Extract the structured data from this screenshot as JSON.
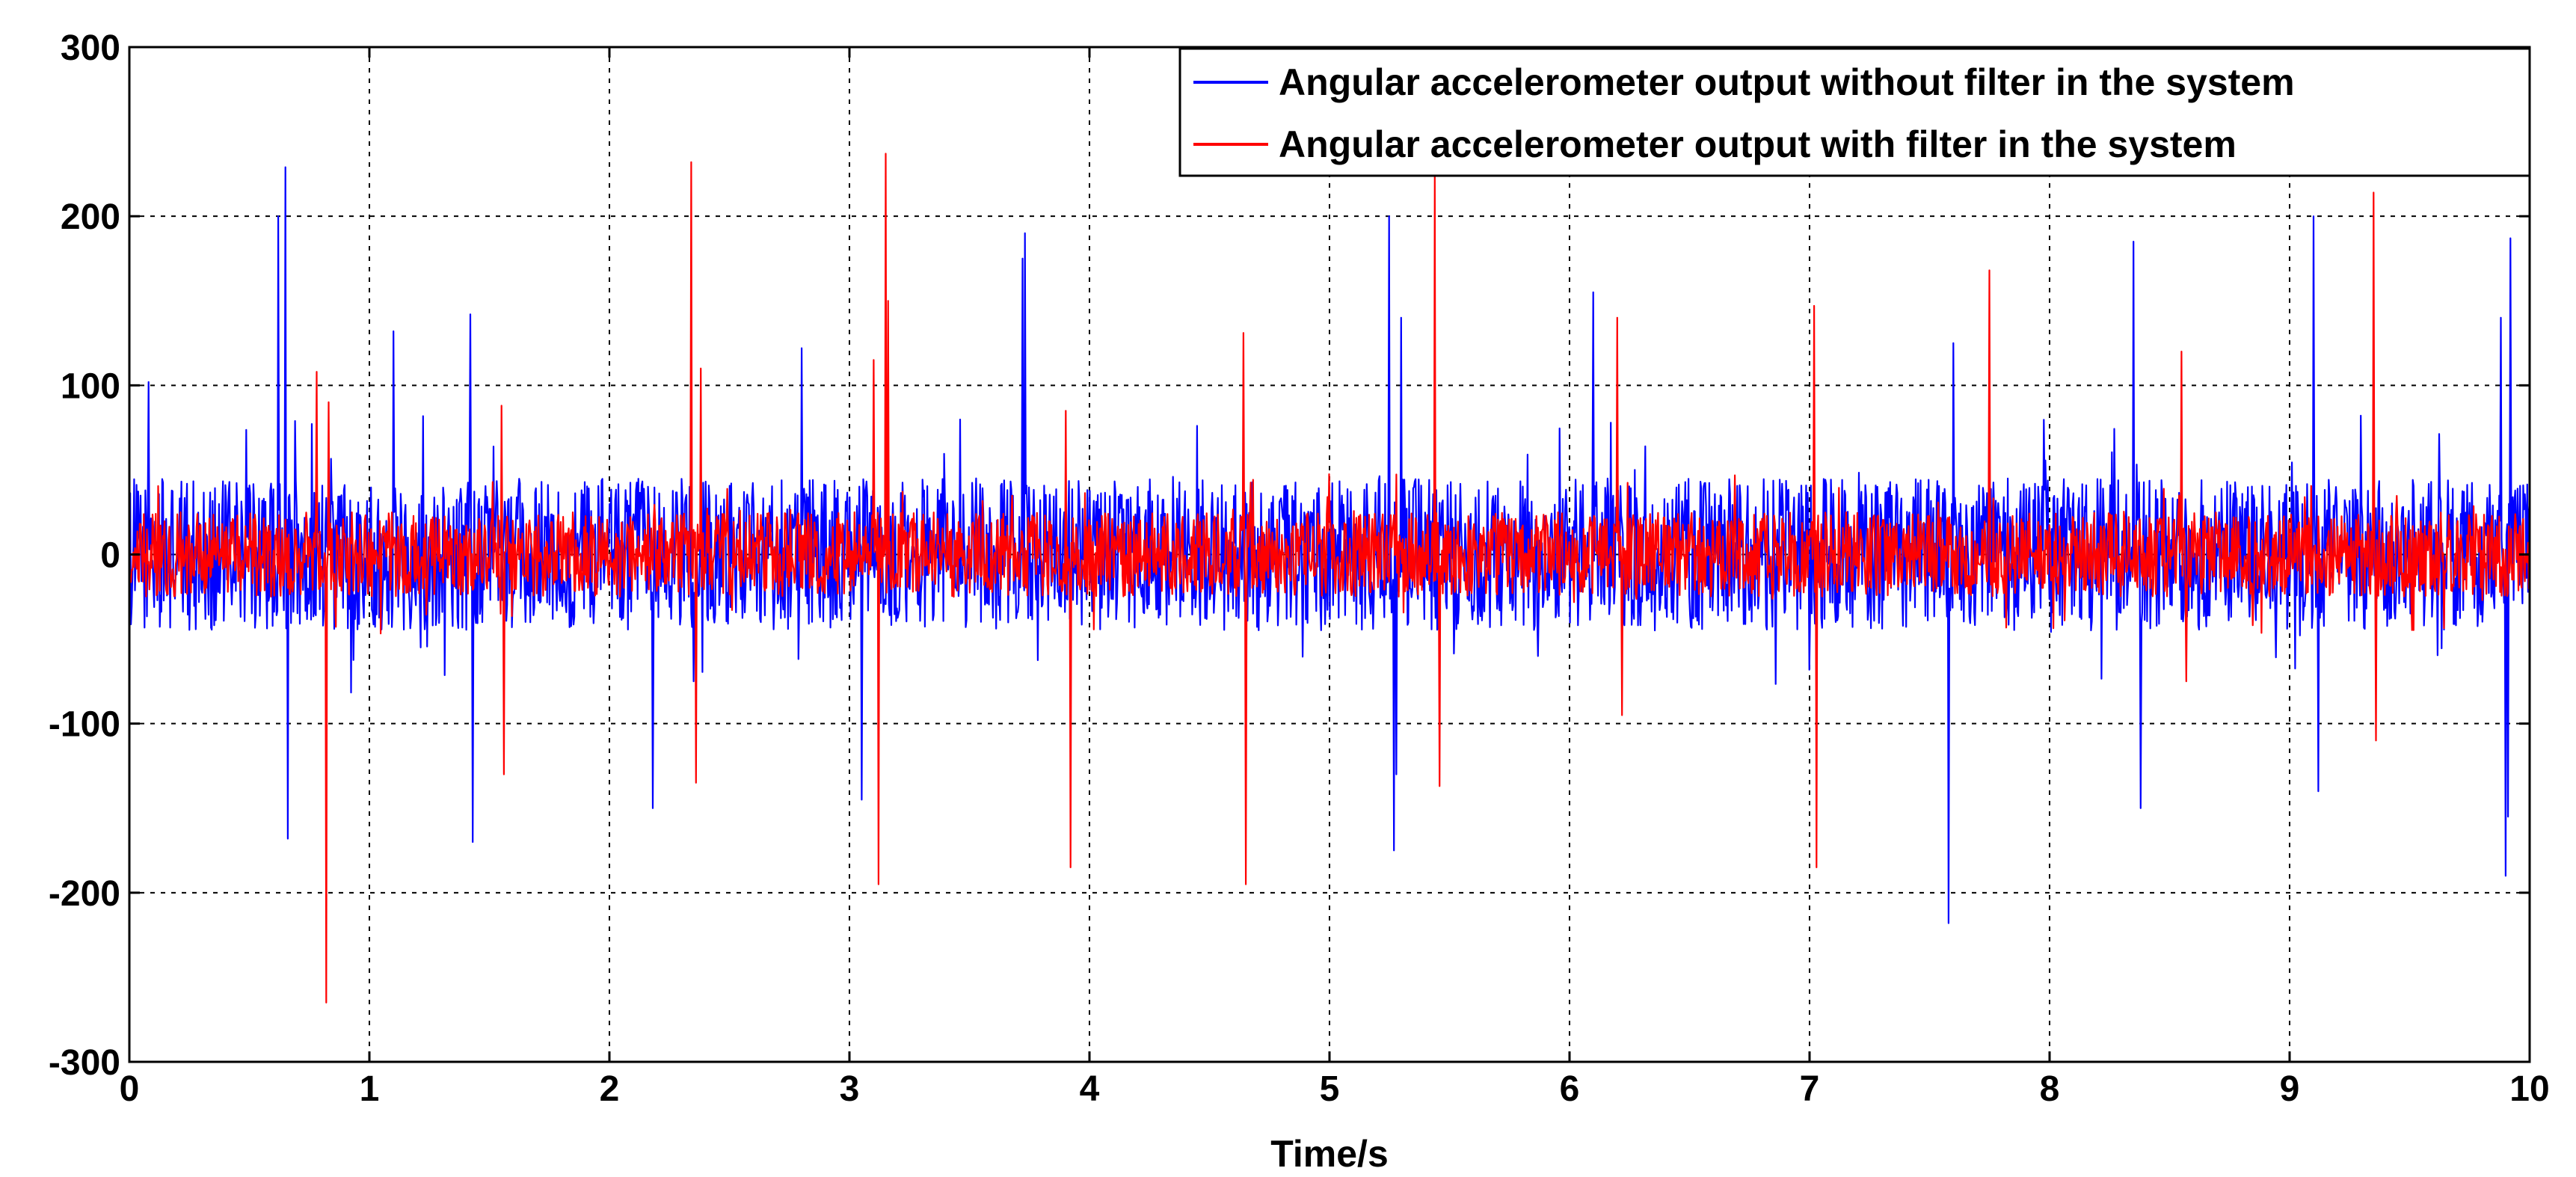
{
  "chart_data": {
    "type": "line",
    "title": "",
    "xlabel": "Time/s",
    "ylabel": "",
    "xlim": [
      0,
      10
    ],
    "ylim": [
      -300,
      300
    ],
    "x_ticks": [
      0,
      1,
      2,
      3,
      4,
      5,
      6,
      7,
      8,
      9,
      10
    ],
    "y_ticks": [
      -300,
      -200,
      -100,
      0,
      100,
      200,
      300
    ],
    "grid": true,
    "legend_position": "top-right",
    "series": [
      {
        "name": "Angular accelerometer output without filter in the system",
        "color": "#0000ff",
        "noise_amplitude": 45,
        "spikes": [
          [
            0.62,
            200
          ],
          [
            0.65,
            229
          ],
          [
            0.66,
            -168
          ],
          [
            0.08,
            102
          ],
          [
            1.1,
            132
          ],
          [
            1.42,
            142
          ],
          [
            1.43,
            -170
          ],
          [
            2.18,
            -150
          ],
          [
            2.35,
            -75
          ],
          [
            2.8,
            122
          ],
          [
            3.05,
            -145
          ],
          [
            3.73,
            190
          ],
          [
            3.72,
            175
          ],
          [
            5.25,
            200
          ],
          [
            5.27,
            -175
          ],
          [
            5.3,
            140
          ],
          [
            5.28,
            -130
          ],
          [
            6.1,
            155
          ],
          [
            7.58,
            -218
          ],
          [
            7.6,
            125
          ],
          [
            8.35,
            185
          ],
          [
            8.38,
            -150
          ],
          [
            9.1,
            200
          ],
          [
            9.12,
            -140
          ],
          [
            9.88,
            140
          ],
          [
            9.9,
            -190
          ],
          [
            9.92,
            187
          ],
          [
            9.91,
            -155
          ]
        ]
      },
      {
        "name": "Angular accelerometer output with filter in the system",
        "color": "#ff0000",
        "noise_amplitude": 25,
        "spikes": [
          [
            0.78,
            108
          ],
          [
            0.82,
            -265
          ],
          [
            0.83,
            90
          ],
          [
            1.55,
            88
          ],
          [
            1.56,
            -130
          ],
          [
            2.34,
            232
          ],
          [
            2.36,
            -135
          ],
          [
            2.38,
            110
          ],
          [
            3.1,
            115
          ],
          [
            3.12,
            -195
          ],
          [
            3.15,
            237
          ],
          [
            3.16,
            150
          ],
          [
            3.9,
            85
          ],
          [
            3.92,
            -185
          ],
          [
            4.64,
            131
          ],
          [
            4.65,
            -195
          ],
          [
            5.44,
            225
          ],
          [
            5.46,
            -137
          ],
          [
            6.2,
            140
          ],
          [
            6.22,
            -95
          ],
          [
            7.02,
            147
          ],
          [
            7.03,
            -185
          ],
          [
            7.75,
            168
          ],
          [
            8.55,
            120
          ],
          [
            8.57,
            -75
          ],
          [
            9.35,
            214
          ],
          [
            9.36,
            -110
          ]
        ]
      }
    ]
  }
}
